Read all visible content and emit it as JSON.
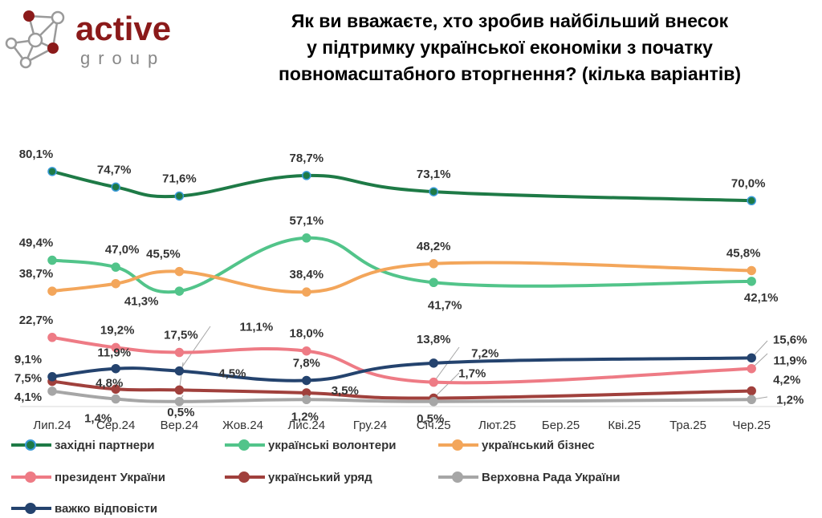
{
  "logo": {
    "word": "active",
    "sub": "group"
  },
  "title_lines": [
    "Як ви вважаєте, хто зробив найбільший внесок",
    "у підтримку української економіки з початку",
    "повномасштабного вторгнення? (кілька варіантів)"
  ],
  "chart_data": {
    "type": "line",
    "title": "Як ви вважаєте, хто зробив найбільший внесок у підтримку української економіки з початку повномасштабного вторгнення? (кілька варіантів)",
    "categories": [
      "Лип.24",
      "Сер.24",
      "Вер.24",
      "Жов.24",
      "Лис.24",
      "Гру.24",
      "Січ.25",
      "Лют.25",
      "Бер.25",
      "Кві.25",
      "Тра.25",
      "Чер.25"
    ],
    "ylim": [
      0,
      85
    ],
    "series": [
      {
        "name": "західні партнери",
        "color": "#1e7a46",
        "marker_edge": "#3a9ad9",
        "values": [
          80.1,
          74.7,
          71.6,
          null,
          78.7,
          null,
          73.1,
          null,
          null,
          null,
          null,
          70.0
        ],
        "labels": [
          "80,1%",
          "74,7%",
          "71,6%",
          null,
          "78,7%",
          null,
          "73,1%",
          null,
          null,
          null,
          null,
          "70,0%"
        ]
      },
      {
        "name": "українські волонтери",
        "color": "#52c48a",
        "marker_edge": "#52c48a",
        "values": [
          49.4,
          47.0,
          38.7,
          null,
          57.1,
          null,
          41.7,
          null,
          null,
          null,
          null,
          42.1
        ],
        "labels": [
          "49,4%",
          "47,0%",
          null,
          null,
          "57,1%",
          null,
          "41,7%",
          null,
          null,
          null,
          null,
          "42,1%"
        ]
      },
      {
        "name": "український бізнес",
        "color": "#f3a65b",
        "marker_edge": "#f3a65b",
        "values": [
          38.7,
          41.3,
          45.5,
          null,
          38.4,
          null,
          48.2,
          null,
          null,
          null,
          null,
          45.8
        ],
        "labels": [
          "38,7%",
          "41,3%",
          "45,5%",
          null,
          "38,4%",
          null,
          "48,2%",
          null,
          null,
          null,
          null,
          "45,8%"
        ]
      },
      {
        "name": "президент України",
        "color": "#ee7b85",
        "marker_edge": "#ee7b85",
        "values": [
          22.7,
          19.2,
          17.5,
          null,
          18.0,
          null,
          7.2,
          null,
          null,
          null,
          null,
          11.9
        ],
        "labels": [
          "22,7%",
          "19,2%",
          "17,5%",
          null,
          "18,0%",
          null,
          "7,2%",
          null,
          null,
          null,
          null,
          "11,9%"
        ]
      },
      {
        "name": "український уряд",
        "color": "#a0403c",
        "marker_edge": "#a0403c",
        "values": [
          7.5,
          4.8,
          4.5,
          null,
          3.5,
          null,
          1.7,
          null,
          null,
          null,
          null,
          4.2
        ],
        "labels": [
          "7,5%",
          "4,8%",
          "4,5%",
          null,
          "3,5%",
          null,
          "1,7%",
          null,
          null,
          null,
          null,
          "4,2%"
        ]
      },
      {
        "name": "Верховна Рада України",
        "color": "#a6a6a6",
        "marker_edge": "#a6a6a6",
        "values": [
          4.1,
          1.4,
          0.5,
          null,
          1.2,
          null,
          0.5,
          null,
          null,
          null,
          null,
          1.2
        ],
        "labels": [
          "4,1%",
          "1,4%",
          "0,5%",
          null,
          "1,2%",
          null,
          "0,5%",
          null,
          null,
          null,
          null,
          "1,2%"
        ]
      },
      {
        "name": "важко відповісти",
        "color": "#24436e",
        "marker_edge": "#24436e",
        "values": [
          9.1,
          11.9,
          11.1,
          null,
          7.8,
          null,
          13.8,
          null,
          null,
          null,
          null,
          15.6
        ],
        "labels": [
          "9,1%",
          "11,9%",
          "11,1%",
          null,
          "7,8%",
          null,
          "13,8%",
          null,
          null,
          null,
          null,
          "15,6%"
        ]
      }
    ]
  }
}
